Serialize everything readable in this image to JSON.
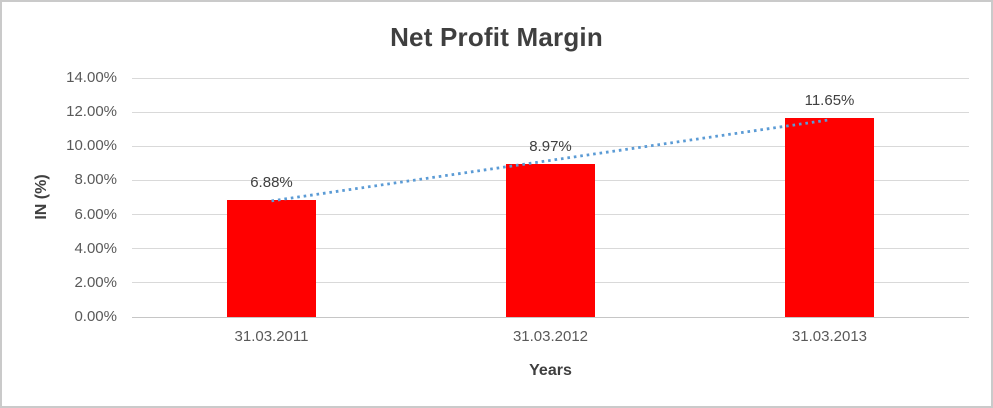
{
  "window": {
    "background": "#ffffff",
    "border_color": "#cacaca"
  },
  "chart_data": {
    "type": "bar",
    "title": "Net Profit Margin",
    "categories": [
      "31.03.2011",
      "31.03.2012",
      "31.03.2013"
    ],
    "values": [
      6.88,
      8.97,
      11.65
    ],
    "data_labels": [
      "6.88%",
      "8.97%",
      "11.65%"
    ],
    "xlabel": "Years",
    "ylabel": "IN (%)",
    "ylim": [
      0,
      14
    ],
    "ytick_step": 2,
    "ytick_labels": [
      "0.00%",
      "2.00%",
      "4.00%",
      "6.00%",
      "8.00%",
      "10.00%",
      "12.00%",
      "14.00%"
    ],
    "grid": true,
    "legend_position": "none",
    "bar_color": "#ff0000",
    "gridline_color": "#d9d9d9",
    "axis_line_color": "#c6c6c6",
    "tick_label_color": "#595959",
    "title_color": "#3f3f3f",
    "data_label_color": "#404040",
    "trendline": {
      "style": "dotted",
      "color": "#5b9bd5",
      "from_category_index": 0,
      "from_value": 6.8,
      "to_category_index": 2,
      "to_value": 11.55
    }
  }
}
